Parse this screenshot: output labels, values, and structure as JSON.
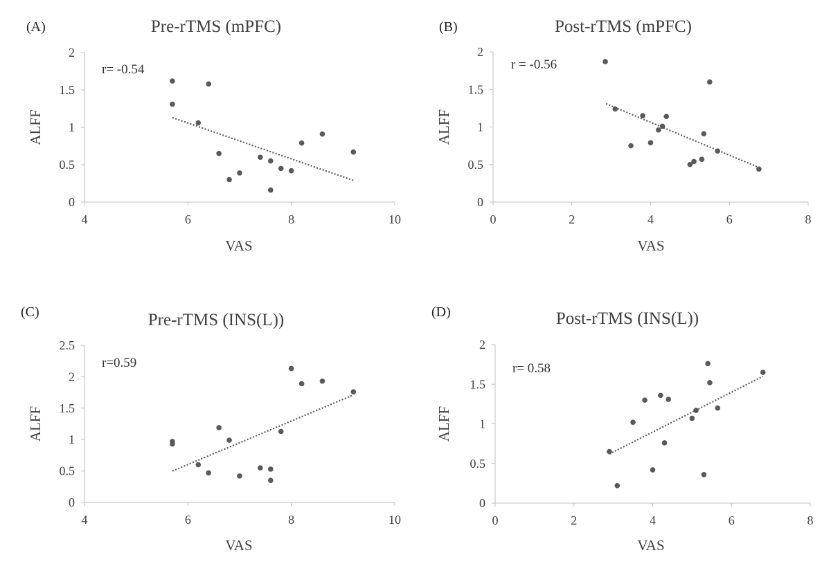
{
  "chart_data": [
    {
      "type": "scatter",
      "panel_label": "(A)",
      "title": "Pre-rTMS (mPFC)",
      "xlabel": "VAS",
      "ylabel": "ALFF",
      "annotation": "r= -0.54",
      "xlim": [
        4,
        10
      ],
      "ylim": [
        0,
        2
      ],
      "xticks": [
        "4",
        "6",
        "8",
        "10"
      ],
      "yticks": [
        "0",
        "0.5",
        "1",
        "1.5",
        "2"
      ],
      "grid": false,
      "trendline": "linear",
      "trend_start": [
        5.7,
        1.13
      ],
      "trend_end": [
        9.2,
        0.29
      ],
      "points": [
        [
          5.7,
          1.62
        ],
        [
          5.7,
          1.31
        ],
        [
          6.2,
          1.06
        ],
        [
          6.4,
          1.58
        ],
        [
          6.6,
          0.65
        ],
        [
          6.8,
          0.3
        ],
        [
          7.0,
          0.39
        ],
        [
          7.4,
          0.6
        ],
        [
          7.6,
          0.55
        ],
        [
          7.6,
          0.16
        ],
        [
          7.8,
          0.45
        ],
        [
          8.0,
          0.42
        ],
        [
          8.2,
          0.79
        ],
        [
          8.6,
          0.91
        ],
        [
          9.2,
          0.67
        ]
      ]
    },
    {
      "type": "scatter",
      "panel_label": "(B)",
      "title": "Post-rTMS (mPFC)",
      "xlabel": "VAS",
      "ylabel": "ALFF",
      "annotation": "r = -0.56",
      "xlim": [
        0,
        8
      ],
      "ylim": [
        0,
        2
      ],
      "xticks": [
        "0",
        "2",
        "4",
        "6",
        "8"
      ],
      "yticks": [
        "0",
        "0.5",
        "1",
        "1.5",
        "2"
      ],
      "grid": false,
      "trendline": "linear",
      "trend_start": [
        2.87,
        1.31
      ],
      "trend_end": [
        6.75,
        0.46
      ],
      "points": [
        [
          2.85,
          1.87
        ],
        [
          3.1,
          1.24
        ],
        [
          3.5,
          0.75
        ],
        [
          3.8,
          1.15
        ],
        [
          4.0,
          0.79
        ],
        [
          4.2,
          0.96
        ],
        [
          4.3,
          1.01
        ],
        [
          4.4,
          1.14
        ],
        [
          5.0,
          0.5
        ],
        [
          5.1,
          0.54
        ],
        [
          5.3,
          0.57
        ],
        [
          5.35,
          0.91
        ],
        [
          5.5,
          1.6
        ],
        [
          5.7,
          0.68
        ],
        [
          6.75,
          0.44
        ]
      ]
    },
    {
      "type": "scatter",
      "panel_label": "(C)",
      "title": "Pre-rTMS (INS(L))",
      "xlabel": "VAS",
      "ylabel": "ALFF",
      "annotation": "r=0.59",
      "xlim": [
        4,
        10
      ],
      "ylim": [
        0,
        2.5
      ],
      "xticks": [
        "4",
        "6",
        "8",
        "10"
      ],
      "yticks": [
        "0",
        "0.5",
        "1",
        "1.5",
        "2",
        "2.5"
      ],
      "grid": false,
      "trendline": "linear",
      "trend_start": [
        5.7,
        0.5
      ],
      "trend_end": [
        9.2,
        1.71
      ],
      "points": [
        [
          5.7,
          0.97
        ],
        [
          5.7,
          0.93
        ],
        [
          6.2,
          0.6
        ],
        [
          6.4,
          0.47
        ],
        [
          6.6,
          1.19
        ],
        [
          6.8,
          0.99
        ],
        [
          7.0,
          0.42
        ],
        [
          7.4,
          0.55
        ],
        [
          7.6,
          0.53
        ],
        [
          7.6,
          0.35
        ],
        [
          7.8,
          1.13
        ],
        [
          8.0,
          2.13
        ],
        [
          8.2,
          1.89
        ],
        [
          8.6,
          1.93
        ],
        [
          9.2,
          1.76
        ]
      ]
    },
    {
      "type": "scatter",
      "panel_label": "(D)",
      "title": "Post-rTMS (INS(L))",
      "xlabel": "VAS",
      "ylabel": "ALFF",
      "annotation": "r= 0.58",
      "xlim": [
        0,
        8
      ],
      "ylim": [
        0,
        2
      ],
      "xticks": [
        "0",
        "2",
        "4",
        "6",
        "8"
      ],
      "yticks": [
        "0",
        "0.5",
        "1",
        "1.5",
        "2"
      ],
      "grid": false,
      "trendline": "linear",
      "trend_start": [
        2.9,
        0.62
      ],
      "trend_end": [
        6.8,
        1.6
      ],
      "points": [
        [
          2.9,
          0.65
        ],
        [
          3.1,
          0.22
        ],
        [
          3.5,
          1.02
        ],
        [
          3.8,
          1.3
        ],
        [
          4.0,
          0.42
        ],
        [
          4.2,
          1.36
        ],
        [
          4.3,
          0.76
        ],
        [
          4.4,
          1.31
        ],
        [
          5.0,
          1.07
        ],
        [
          5.1,
          1.17
        ],
        [
          5.3,
          0.36
        ],
        [
          5.4,
          1.76
        ],
        [
          5.45,
          1.52
        ],
        [
          5.65,
          1.2
        ],
        [
          6.8,
          1.65
        ]
      ]
    }
  ]
}
